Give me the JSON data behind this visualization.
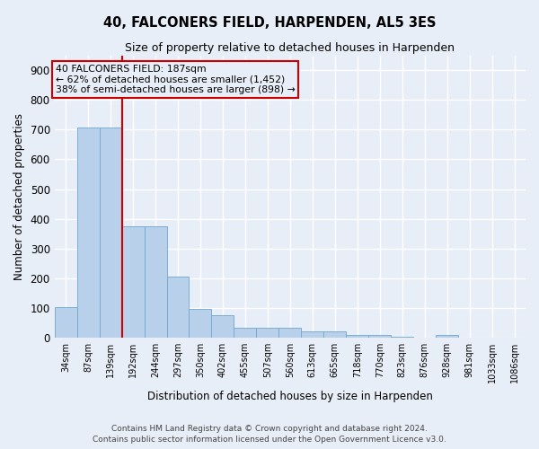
{
  "title": "40, FALCONERS FIELD, HARPENDEN, AL5 3ES",
  "subtitle": "Size of property relative to detached houses in Harpenden",
  "xlabel": "Distribution of detached houses by size in Harpenden",
  "ylabel": "Number of detached properties",
  "bar_heights": [
    103,
    706,
    706,
    375,
    375,
    207,
    97,
    75,
    32,
    33,
    33,
    21,
    22,
    8,
    10,
    3,
    0,
    10,
    0,
    0,
    0
  ],
  "bin_labels": [
    "34sqm",
    "87sqm",
    "139sqm",
    "192sqm",
    "244sqm",
    "297sqm",
    "350sqm",
    "402sqm",
    "455sqm",
    "507sqm",
    "560sqm",
    "613sqm",
    "665sqm",
    "718sqm",
    "770sqm",
    "823sqm",
    "876sqm",
    "928sqm",
    "981sqm",
    "1033sqm",
    "1086sqm"
  ],
  "bar_color": "#b8d0ea",
  "bar_edgecolor": "#6ea6d0",
  "vline_color": "#cc0000",
  "annotation_line1": "40 FALCONERS FIELD: 187sqm",
  "annotation_line2": "← 62% of detached houses are smaller (1,452)",
  "annotation_line3": "38% of semi-detached houses are larger (898) →",
  "vline_pos": 2.5,
  "ylim": [
    0,
    950
  ],
  "yticks": [
    0,
    100,
    200,
    300,
    400,
    500,
    600,
    700,
    800,
    900
  ],
  "footnote1": "Contains HM Land Registry data © Crown copyright and database right 2024.",
  "footnote2": "Contains public sector information licensed under the Open Government Licence v3.0.",
  "bg_color": "#e8eef8",
  "grid_color": "#ffffff"
}
